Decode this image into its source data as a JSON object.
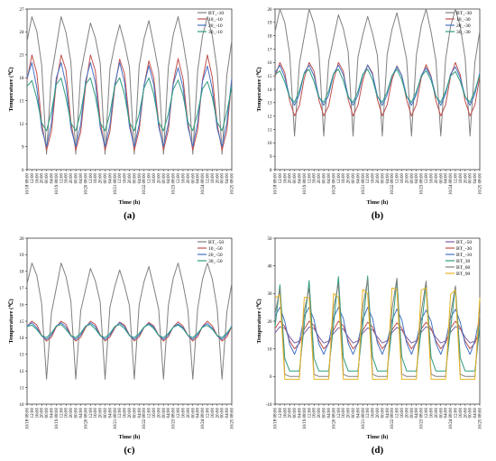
{
  "x_ticks": [
    "10/18 08:00",
    "12:00",
    "16:00",
    "20:00",
    "00:00",
    "04:00",
    "08:00",
    "12:00",
    "16:00",
    "20:00",
    "00:00",
    "04:00",
    "08:00",
    "12:00",
    "16:00",
    "20:00",
    "00:00",
    "04:00",
    "08:00",
    "12:00",
    "16:00",
    "20:00",
    "00:00",
    "04:00",
    "08:00",
    "12:00",
    "16:00",
    "20:00",
    "00:00",
    "04:00",
    "08:00",
    "12:00",
    "16:00",
    "20:00",
    "00:00",
    "04:00",
    "08:00",
    "12:00",
    "16:00",
    "20:00",
    "00:00",
    "04:00",
    "08:00"
  ],
  "x_major": [
    "10/18 08:00",
    "10/19 08:00",
    "10/20 08:00",
    "10/21 08:00",
    "10/22 08:00",
    "10/23 08:00",
    "10/24 08:00",
    "10/25 08:00"
  ],
  "chart_data": [
    {
      "type": "line",
      "panel_label": "(a)",
      "xlabel": "Time (h)",
      "ylabel": "Temperature (℃)",
      "ylim": [
        6,
        27
      ],
      "yticks": [
        6,
        9,
        12,
        15,
        18,
        21,
        24,
        27
      ],
      "legend": "top-right",
      "series": [
        {
          "name": "BT_-10",
          "color": "#808080",
          "profile": "bt",
          "min": 8,
          "max": 26
        },
        {
          "name": "10_-10",
          "color": "#c0504d",
          "profile": "smooth",
          "min": 8.5,
          "max": 21
        },
        {
          "name": "20_-10",
          "color": "#4472c4",
          "profile": "smooth",
          "min": 9,
          "max": 20
        },
        {
          "name": "30_-10",
          "color": "#2e9c7e",
          "profile": "smooth",
          "min": 11,
          "max": 18
        }
      ]
    },
    {
      "type": "line",
      "panel_label": "(b)",
      "xlabel": "Time (h)",
      "ylabel": "Temperature (℃)",
      "ylim": [
        8,
        20
      ],
      "yticks": [
        8,
        9,
        10,
        11,
        12,
        13,
        14,
        15,
        16,
        17,
        18,
        19,
        20
      ],
      "legend": "top-right",
      "series": [
        {
          "name": "BT_-30",
          "color": "#808080",
          "profile": "bt",
          "min": 10.5,
          "max": 20
        },
        {
          "name": "10_-30",
          "color": "#c0504d",
          "profile": "smooth",
          "min": 12,
          "max": 16
        },
        {
          "name": "20_-30",
          "color": "#4472c4",
          "profile": "smooth",
          "min": 12.8,
          "max": 15.8
        },
        {
          "name": "30_-30",
          "color": "#2e9c7e",
          "profile": "smooth",
          "min": 13,
          "max": 15.5
        }
      ]
    },
    {
      "type": "line",
      "panel_label": "(c)",
      "xlabel": "Time (h)",
      "ylabel": "Temperature (℃)",
      "ylim": [
        10,
        20
      ],
      "yticks": [
        10,
        11,
        12,
        13,
        14,
        15,
        16,
        17,
        18,
        19,
        20
      ],
      "legend": "top-right",
      "series": [
        {
          "name": "BT_-50",
          "color": "#808080",
          "profile": "bt",
          "min": 11.5,
          "max": 18.5
        },
        {
          "name": "10_-50",
          "color": "#c0504d",
          "profile": "smooth",
          "min": 13.8,
          "max": 15
        },
        {
          "name": "20_-50",
          "color": "#4472c4",
          "profile": "smooth",
          "min": 13.9,
          "max": 14.9
        },
        {
          "name": "30_-50",
          "color": "#2e9c7e",
          "profile": "smooth",
          "min": 14,
          "max": 14.8
        }
      ]
    },
    {
      "type": "line",
      "panel_label": "(d)",
      "xlabel": "Time (h)",
      "ylabel": "Temperature (℃)",
      "ylim": [
        -10,
        50
      ],
      "yticks": [
        -10,
        0,
        10,
        20,
        30,
        40,
        50
      ],
      "legend": "top-right",
      "series": [
        {
          "name": "BT_-50",
          "color": "#7b5ea7",
          "profile": "smooth",
          "min": 12,
          "max": 18
        },
        {
          "name": "BT_-30",
          "color": "#c0504d",
          "profile": "smooth",
          "min": 10,
          "max": 20
        },
        {
          "name": "BT_-10",
          "color": "#4472c4",
          "profile": "smooth",
          "min": 8,
          "max": 25
        },
        {
          "name": "BT_30",
          "color": "#2e9c7e",
          "profile": "spike",
          "min": 2,
          "max": 40
        },
        {
          "name": "BT_60",
          "color": "#808080",
          "profile": "spike",
          "min": 0,
          "max": 45
        },
        {
          "name": "BT_90",
          "color": "#e6b422",
          "profile": "spike",
          "min": -1,
          "max": 48
        }
      ]
    }
  ]
}
